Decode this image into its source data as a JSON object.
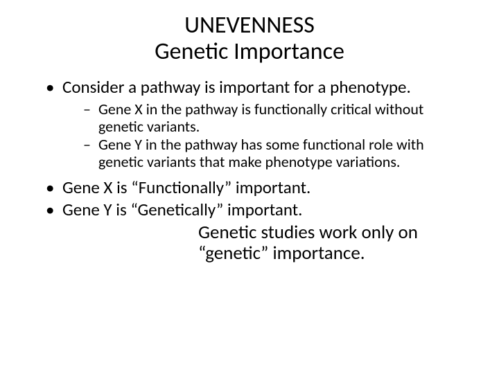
{
  "title": {
    "line1": "UNEVENNESS",
    "line2": "Genetic Importance"
  },
  "bullets": {
    "b1": "Consider a pathway is important for a phenotype.",
    "sub1": "Gene X in the pathway is functionally critical without genetic variants.",
    "sub2": "Gene Y in the pathway has some functional role with genetic variants that make phenotype variations.",
    "b2": "Gene X is “Functionally” important.",
    "b3": "Gene Y is “Genetically” important."
  },
  "closing": "Genetic studies work only on “genetic” importance.",
  "style": {
    "background_color": "#ffffff",
    "text_color": "#000000",
    "title_fontsize": 34,
    "bullet_fontsize": 25,
    "sub_fontsize": 22,
    "closing_fontsize": 27,
    "font_family": "Calibri"
  }
}
